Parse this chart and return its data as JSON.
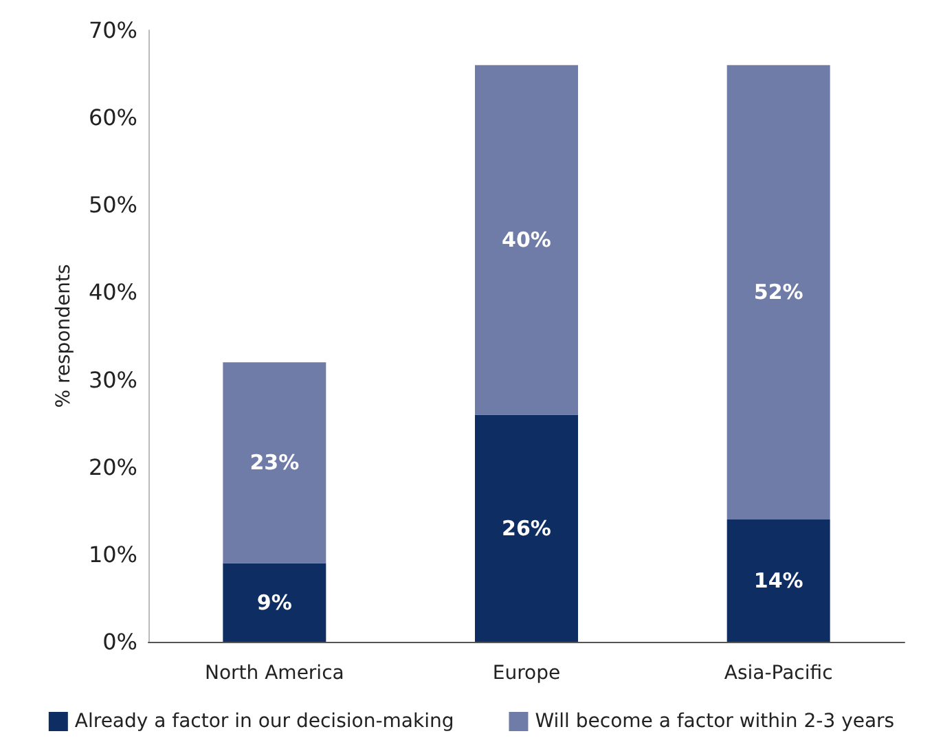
{
  "chart_data": {
    "type": "bar",
    "ylabel": "% respondents",
    "categories": [
      "North America",
      "Europe",
      "Asia-Pacific"
    ],
    "stacked": true,
    "series": [
      {
        "name": "Already a factor in our decision-making",
        "color": "#0e2d62",
        "values": [
          9,
          26,
          14
        ]
      },
      {
        "name": "Will become a factor within 2-3 years",
        "color": "#6f7ca8",
        "values": [
          23,
          40,
          52
        ]
      }
    ],
    "ylim": [
      0,
      70
    ],
    "yticks": [
      {
        "value": 0,
        "label": "0%"
      },
      {
        "value": 10,
        "label": "10%"
      },
      {
        "value": 20,
        "label": "20%"
      },
      {
        "value": 30,
        "label": "30%"
      },
      {
        "value": 40,
        "label": "40%"
      },
      {
        "value": 50,
        "label": "50%"
      },
      {
        "value": 60,
        "label": "60%"
      },
      {
        "value": 70,
        "label": "70%"
      }
    ],
    "value_labels": [
      [
        "9%",
        "26%",
        "14%"
      ],
      [
        "23%",
        "40%",
        "52%"
      ]
    ],
    "grid": false,
    "legend": "bottom"
  }
}
